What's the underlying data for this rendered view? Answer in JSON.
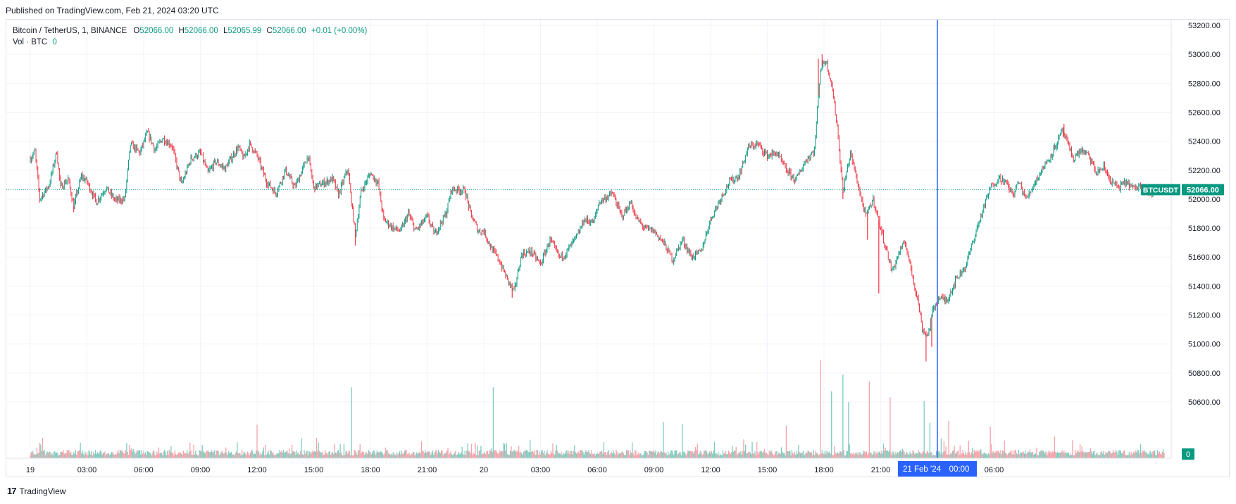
{
  "header": {
    "published": "Published on TradingView.com, Feb 21, 2024 03:20 UTC"
  },
  "legend": {
    "symbol": "Bitcoin / TetherUS, 1, BINANCE",
    "open_label": "O",
    "open": "52066.00",
    "high_label": "H",
    "high": "52066.00",
    "low_label": "L",
    "low": "52065.99",
    "close_label": "C",
    "close": "52066.00",
    "change": "+0.01 (+0.00%)",
    "vol_label": "Vol · BTC",
    "vol_value": "0"
  },
  "footer": {
    "brand": "TradingView",
    "logo": "17"
  },
  "colors": {
    "up": "#089981",
    "down": "#f23645",
    "crosshair": "#2962ff",
    "grid": "#f0f3fa"
  },
  "chart_data": {
    "type": "candlestick",
    "symbol_tag": "BTCUSDT",
    "last_price": "52066.00",
    "price_line": 52066,
    "volume_tag": "0",
    "ylim": [
      50500,
      53250
    ],
    "y_ticks": [
      "53200.00",
      "53000.00",
      "52800.00",
      "52600.00",
      "52400.00",
      "52200.00",
      "52000.00",
      "51800.00",
      "51600.00",
      "51400.00",
      "51200.00",
      "51000.00",
      "50800.00",
      "50600.00"
    ],
    "x_ticks": [
      "19",
      "03:00",
      "06:00",
      "09:00",
      "12:00",
      "15:00",
      "18:00",
      "21:00",
      "20",
      "03:00",
      "06:00",
      "09:00",
      "12:00",
      "15:00",
      "18:00",
      "21:00",
      "03:00",
      "06:00"
    ],
    "crosshair_label_date": "21 Feb '24",
    "crosshair_label_time": "00:00",
    "series": [
      {
        "price_path": [
          [
            0,
            52280
          ],
          [
            0.25,
            52330
          ],
          [
            0.5,
            52000
          ],
          [
            1,
            52100
          ],
          [
            1.4,
            52330
          ],
          [
            1.6,
            52080
          ],
          [
            2,
            52140
          ],
          [
            2.3,
            51950
          ],
          [
            2.7,
            52160
          ],
          [
            3,
            52120
          ],
          [
            3.5,
            51980
          ],
          [
            4,
            52080
          ],
          [
            4.5,
            51990
          ],
          [
            5,
            52000
          ],
          [
            5.3,
            52380
          ],
          [
            5.8,
            52320
          ],
          [
            6.2,
            52460
          ],
          [
            6.6,
            52340
          ],
          [
            7,
            52420
          ],
          [
            7.5,
            52370
          ],
          [
            8,
            52100
          ],
          [
            8.5,
            52280
          ],
          [
            9,
            52320
          ],
          [
            9.4,
            52180
          ],
          [
            9.8,
            52260
          ],
          [
            10.3,
            52210
          ],
          [
            11,
            52360
          ],
          [
            11.3,
            52280
          ],
          [
            11.6,
            52380
          ],
          [
            12,
            52300
          ],
          [
            12.5,
            52120
          ],
          [
            13,
            52040
          ],
          [
            13.5,
            52200
          ],
          [
            14,
            52080
          ],
          [
            14.7,
            52300
          ],
          [
            15,
            52080
          ],
          [
            16,
            52140
          ],
          [
            16.3,
            52030
          ],
          [
            16.8,
            52210
          ],
          [
            17.2,
            51750
          ],
          [
            17.5,
            52050
          ],
          [
            18,
            52180
          ],
          [
            18.4,
            52110
          ],
          [
            18.7,
            51860
          ],
          [
            19.2,
            51800
          ],
          [
            19.6,
            51780
          ],
          [
            20,
            51900
          ],
          [
            20.4,
            51780
          ],
          [
            21,
            51880
          ],
          [
            21.4,
            51760
          ],
          [
            22,
            51900
          ],
          [
            22.3,
            52070
          ],
          [
            23,
            52060
          ],
          [
            23.3,
            51900
          ],
          [
            23.7,
            51780
          ],
          [
            24,
            51780
          ],
          [
            24.4,
            51660
          ],
          [
            24.8,
            51580
          ],
          [
            25.3,
            51430
          ],
          [
            25.6,
            51360
          ],
          [
            26,
            51620
          ],
          [
            26.5,
            51640
          ],
          [
            27,
            51550
          ],
          [
            27.5,
            51720
          ],
          [
            28,
            51600
          ],
          [
            28.3,
            51620
          ],
          [
            29,
            51760
          ],
          [
            29.3,
            51860
          ],
          [
            29.8,
            51840
          ],
          [
            30.1,
            51980
          ],
          [
            30.8,
            52040
          ],
          [
            31.3,
            51880
          ],
          [
            31.8,
            51980
          ],
          [
            32,
            51880
          ],
          [
            32.5,
            51800
          ],
          [
            33,
            51780
          ],
          [
            33.5,
            51700
          ],
          [
            34,
            51580
          ],
          [
            34.5,
            51720
          ],
          [
            35,
            51600
          ],
          [
            35.5,
            51640
          ],
          [
            36,
            51860
          ],
          [
            36.5,
            52000
          ],
          [
            37,
            52120
          ],
          [
            37.5,
            52160
          ],
          [
            38,
            52360
          ],
          [
            38.5,
            52380
          ],
          [
            39,
            52300
          ],
          [
            39.5,
            52320
          ],
          [
            40,
            52200
          ],
          [
            40.5,
            52130
          ],
          [
            41,
            52260
          ],
          [
            41.5,
            52340
          ],
          [
            41.8,
            52900
          ],
          [
            42.1,
            52960
          ],
          [
            42.4,
            52800
          ],
          [
            42.7,
            52500
          ],
          [
            43,
            52050
          ],
          [
            43.4,
            52320
          ],
          [
            43.8,
            52100
          ],
          [
            44.2,
            51880
          ],
          [
            44.6,
            52000
          ],
          [
            45,
            51800
          ],
          [
            45.3,
            51650
          ],
          [
            45.6,
            51500
          ],
          [
            46,
            51640
          ],
          [
            46.3,
            51700
          ],
          [
            46.6,
            51520
          ],
          [
            47,
            51280
          ],
          [
            47.2,
            51100
          ],
          [
            47.5,
            51060
          ],
          [
            47.8,
            51250
          ],
          [
            48.1,
            51320
          ],
          [
            48.5,
            51300
          ],
          [
            49,
            51450
          ],
          [
            49.5,
            51540
          ],
          [
            50,
            51760
          ],
          [
            50.4,
            51920
          ],
          [
            50.8,
            52080
          ],
          [
            51.3,
            52150
          ],
          [
            51.7,
            52100
          ],
          [
            52,
            52030
          ],
          [
            52.3,
            52120
          ],
          [
            52.7,
            52000
          ],
          [
            53.3,
            52150
          ],
          [
            53.6,
            52220
          ],
          [
            54,
            52300
          ],
          [
            54.3,
            52380
          ],
          [
            54.6,
            52470
          ],
          [
            54.9,
            52380
          ],
          [
            55.2,
            52280
          ],
          [
            55.6,
            52340
          ],
          [
            56,
            52300
          ],
          [
            56.4,
            52180
          ],
          [
            56.8,
            52220
          ],
          [
            57.2,
            52120
          ],
          [
            57.6,
            52080
          ],
          [
            58,
            52120
          ],
          [
            58.4,
            52070
          ],
          [
            58.8,
            52100
          ],
          [
            59.2,
            52040
          ],
          [
            59.6,
            52060
          ],
          [
            60,
            52066
          ]
        ],
        "wicks": [
          [
            2.3,
            51910
          ],
          [
            17.2,
            51680
          ],
          [
            25.5,
            51320
          ],
          [
            41.7,
            52970
          ],
          [
            43,
            52000
          ],
          [
            44.3,
            51720
          ],
          [
            44.9,
            51350
          ],
          [
            47.2,
            51140
          ],
          [
            47.4,
            50880
          ],
          [
            47.7,
            50980
          ],
          [
            54.7,
            52520
          ],
          [
            41.9,
            53000
          ]
        ]
      }
    ],
    "volume_spikes": [
      [
        12,
        0.34
      ],
      [
        17,
        0.72
      ],
      [
        24.5,
        0.72
      ],
      [
        33.5,
        0.37
      ],
      [
        34.5,
        0.35
      ],
      [
        40,
        0.33
      ],
      [
        41.8,
        1.0
      ],
      [
        42.4,
        0.68
      ],
      [
        43,
        0.85
      ],
      [
        43.3,
        0.57
      ],
      [
        44.4,
        0.78
      ],
      [
        45.5,
        0.62
      ],
      [
        47.3,
        0.58
      ],
      [
        47.6,
        0.36
      ],
      [
        48.6,
        0.38
      ],
      [
        50.8,
        0.32
      ],
      [
        54.2,
        0.22
      ]
    ]
  }
}
